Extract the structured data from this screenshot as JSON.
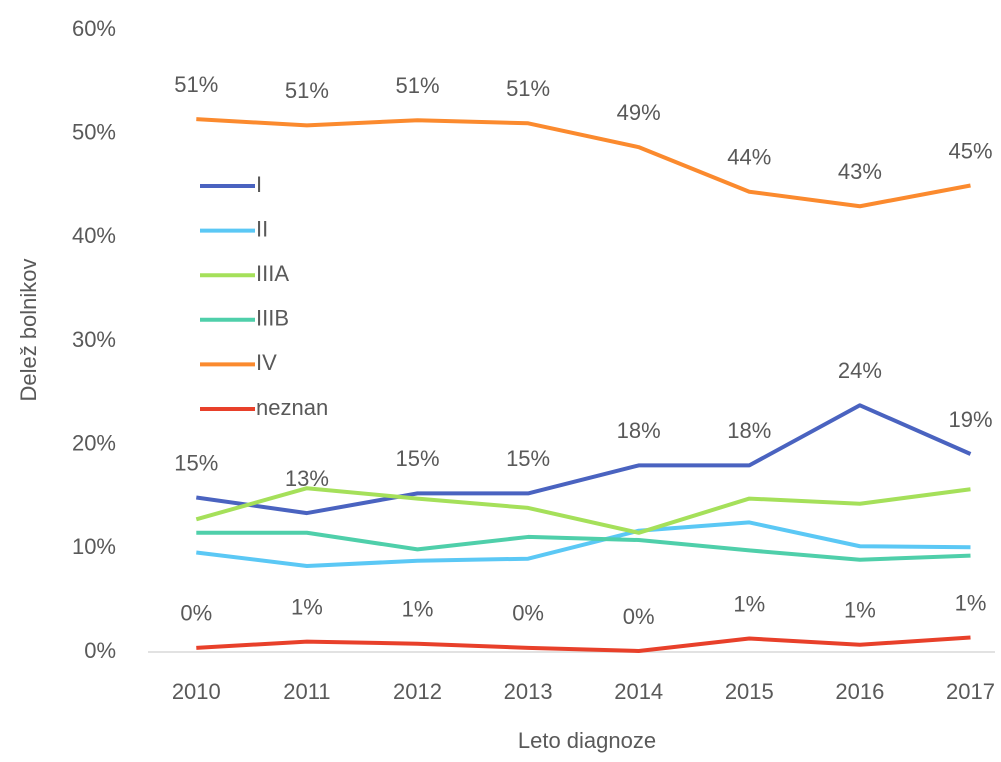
{
  "chart_data": {
    "type": "line",
    "x_label": "Leto diagnoze",
    "y_label": "Delež bolnikov",
    "categories": [
      "2010",
      "2011",
      "2012",
      "2013",
      "2014",
      "2015",
      "2016",
      "2017"
    ],
    "ylim": [
      0,
      60
    ],
    "yticks": [
      {
        "value": 0,
        "label": "0%"
      },
      {
        "value": 10,
        "label": "10%"
      },
      {
        "value": 20,
        "label": "20%"
      },
      {
        "value": 30,
        "label": "30%"
      },
      {
        "value": 40,
        "label": "40%"
      },
      {
        "value": 50,
        "label": "50%"
      },
      {
        "value": 60,
        "label": "60%"
      }
    ],
    "grid": false,
    "legend": "upper left",
    "series": [
      {
        "name": "I",
        "color": "#4a63c0",
        "values": [
          14.9,
          13.4,
          15.3,
          15.3,
          18.0,
          18.0,
          23.8,
          19.1
        ],
        "value_labels": [
          "15%",
          "13%",
          "15%",
          "15%",
          "18%",
          "18%",
          "24%",
          "19%"
        ]
      },
      {
        "name": "II",
        "color": "#5bc8f5",
        "values": [
          9.6,
          8.3,
          8.8,
          9.0,
          11.7,
          12.5,
          10.2,
          10.1
        ]
      },
      {
        "name": "IIIA",
        "color": "#a5e05a",
        "values": [
          12.8,
          15.8,
          14.8,
          13.9,
          11.5,
          14.8,
          14.3,
          15.7
        ]
      },
      {
        "name": "IIIB",
        "color": "#4fcfaa",
        "values": [
          11.5,
          11.5,
          9.9,
          11.1,
          10.8,
          9.8,
          8.9,
          9.3
        ]
      },
      {
        "name": "IV",
        "color": "#fb8a2e",
        "values": [
          51.4,
          50.8,
          51.3,
          51.0,
          48.7,
          44.4,
          43.0,
          45.0
        ],
        "value_labels": [
          "51%",
          "51%",
          "51%",
          "51%",
          "49%",
          "44%",
          "43%",
          "45%"
        ]
      },
      {
        "name": "neznan",
        "color": "#e8402a",
        "values": [
          0.4,
          1.0,
          0.8,
          0.4,
          0.1,
          1.3,
          0.7,
          1.4
        ],
        "value_labels": [
          "0%",
          "1%",
          "1%",
          "0%",
          "0%",
          "1%",
          "1%",
          "1%"
        ]
      }
    ]
  }
}
